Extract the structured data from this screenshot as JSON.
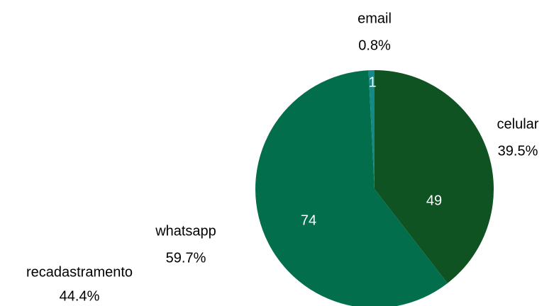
{
  "chart_data": {
    "type": "pie",
    "categories": [
      "celular",
      "whatsapp",
      "email"
    ],
    "values": [
      49,
      74,
      1
    ],
    "percent_labels": [
      "39.5%",
      "59.7%",
      "0.8%"
    ],
    "colors": [
      "#0f5323",
      "#036e4c",
      "#138a88"
    ]
  },
  "fragment": {
    "label": "recadastramento",
    "percent_label": "44.4%"
  }
}
